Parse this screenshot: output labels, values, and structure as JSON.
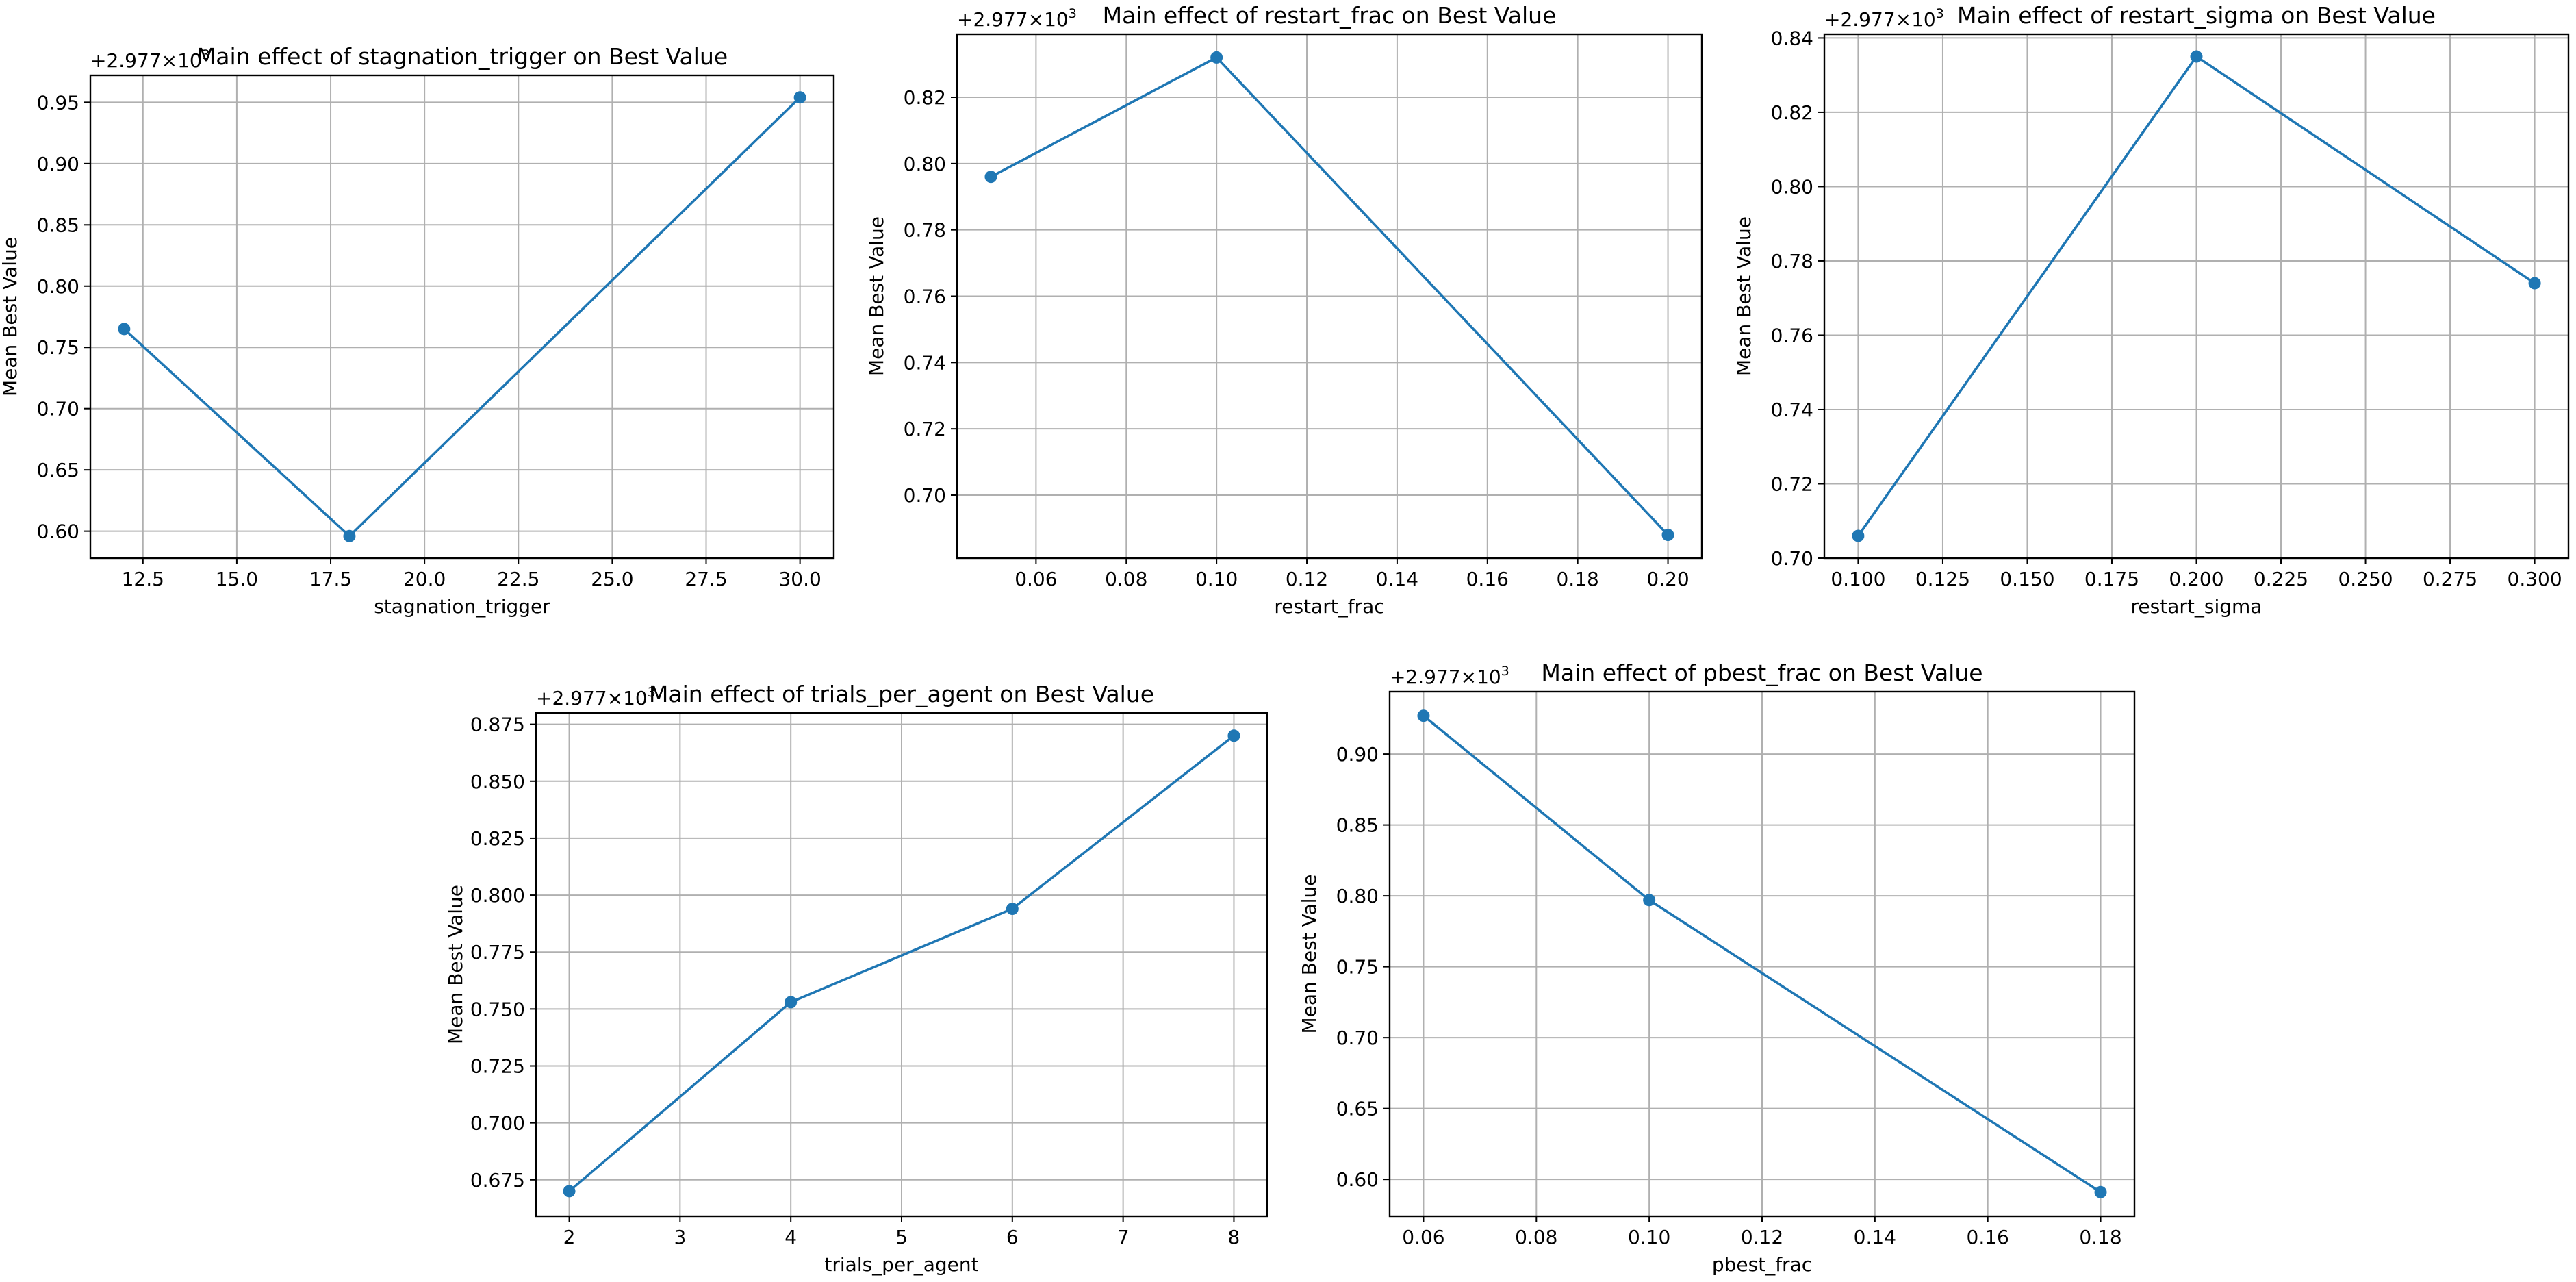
{
  "style": {
    "line_color": "#1f77b4",
    "grid": true,
    "marker": "circle"
  },
  "chart_data": [
    {
      "type": "line",
      "title": "Main effect of stagnation_trigger on Best Value",
      "xlabel": "stagnation_trigger",
      "ylabel": "Mean Best Value",
      "offset_label": "+2.977×10",
      "offset_exp": "3",
      "x": [
        12,
        18,
        30
      ],
      "y": [
        0.765,
        0.596,
        0.954
      ],
      "xlim": [
        11.1,
        30.9
      ],
      "ylim": [
        0.578,
        0.972
      ],
      "xticks": [
        12.5,
        15.0,
        17.5,
        20.0,
        22.5,
        25.0,
        27.5,
        30.0
      ],
      "xtick_labels": [
        "12.5",
        "15.0",
        "17.5",
        "20.0",
        "22.5",
        "25.0",
        "27.5",
        "30.0"
      ],
      "yticks": [
        0.6,
        0.65,
        0.7,
        0.75,
        0.8,
        0.85,
        0.9,
        0.95
      ],
      "ytick_labels": [
        "0.60",
        "0.65",
        "0.70",
        "0.75",
        "0.80",
        "0.85",
        "0.90",
        "0.95"
      ]
    },
    {
      "type": "line",
      "title": "Main effect of restart_frac on Best Value",
      "xlabel": "restart_frac",
      "ylabel": "Mean Best Value",
      "offset_label": "+2.977×10",
      "offset_exp": "3",
      "x": [
        0.05,
        0.1,
        0.2
      ],
      "y": [
        0.796,
        0.832,
        0.688
      ],
      "xlim": [
        0.0425,
        0.2075
      ],
      "ylim": [
        0.681,
        0.839
      ],
      "xticks": [
        0.06,
        0.08,
        0.1,
        0.12,
        0.14,
        0.16,
        0.18,
        0.2
      ],
      "xtick_labels": [
        "0.06",
        "0.08",
        "0.10",
        "0.12",
        "0.14",
        "0.16",
        "0.18",
        "0.20"
      ],
      "yticks": [
        0.7,
        0.72,
        0.74,
        0.76,
        0.78,
        0.8,
        0.82
      ],
      "ytick_labels": [
        "0.70",
        "0.72",
        "0.74",
        "0.76",
        "0.78",
        "0.80",
        "0.82"
      ]
    },
    {
      "type": "line",
      "title": "Main effect of restart_sigma on Best Value",
      "xlabel": "restart_sigma",
      "ylabel": "Mean Best Value",
      "offset_label": "+2.977×10",
      "offset_exp": "3",
      "x": [
        0.1,
        0.2,
        0.3
      ],
      "y": [
        0.706,
        0.835,
        0.774
      ],
      "xlim": [
        0.09,
        0.31
      ],
      "ylim": [
        0.7,
        0.841
      ],
      "xticks": [
        0.1,
        0.125,
        0.15,
        0.175,
        0.2,
        0.225,
        0.25,
        0.275,
        0.3
      ],
      "xtick_labels": [
        "0.100",
        "0.125",
        "0.150",
        "0.175",
        "0.200",
        "0.225",
        "0.250",
        "0.275",
        "0.300"
      ],
      "yticks": [
        0.7,
        0.72,
        0.74,
        0.76,
        0.78,
        0.8,
        0.82,
        0.84
      ],
      "ytick_labels": [
        "0.70",
        "0.72",
        "0.74",
        "0.76",
        "0.78",
        "0.80",
        "0.82",
        "0.84"
      ]
    },
    {
      "type": "line",
      "title": "Main effect of trials_per_agent on Best Value",
      "xlabel": "trials_per_agent",
      "ylabel": "Mean Best Value",
      "offset_label": "+2.977×10",
      "offset_exp": "3",
      "x": [
        2,
        4,
        6,
        8
      ],
      "y": [
        0.67,
        0.753,
        0.794,
        0.87
      ],
      "xlim": [
        1.7,
        8.3
      ],
      "ylim": [
        0.659,
        0.88
      ],
      "xticks": [
        2,
        3,
        4,
        5,
        6,
        7,
        8
      ],
      "xtick_labels": [
        "2",
        "3",
        "4",
        "5",
        "6",
        "7",
        "8"
      ],
      "yticks": [
        0.675,
        0.7,
        0.725,
        0.75,
        0.775,
        0.8,
        0.825,
        0.85,
        0.875
      ],
      "ytick_labels": [
        "0.675",
        "0.700",
        "0.725",
        "0.750",
        "0.775",
        "0.800",
        "0.825",
        "0.850",
        "0.875"
      ]
    },
    {
      "type": "line",
      "title": "Main effect of pbest_frac on Best Value",
      "xlabel": "pbest_frac",
      "ylabel": "Mean Best Value",
      "offset_label": "+2.977×10",
      "offset_exp": "3",
      "x": [
        0.06,
        0.1,
        0.18
      ],
      "y": [
        0.927,
        0.797,
        0.591
      ],
      "xlim": [
        0.054,
        0.186
      ],
      "ylim": [
        0.574,
        0.944
      ],
      "xticks": [
        0.06,
        0.08,
        0.1,
        0.12,
        0.14,
        0.16,
        0.18
      ],
      "xtick_labels": [
        "0.06",
        "0.08",
        "0.10",
        "0.12",
        "0.14",
        "0.16",
        "0.18"
      ],
      "yticks": [
        0.6,
        0.65,
        0.7,
        0.75,
        0.8,
        0.85,
        0.9
      ],
      "ytick_labels": [
        "0.60",
        "0.65",
        "0.70",
        "0.75",
        "0.80",
        "0.85",
        "0.90"
      ]
    }
  ]
}
